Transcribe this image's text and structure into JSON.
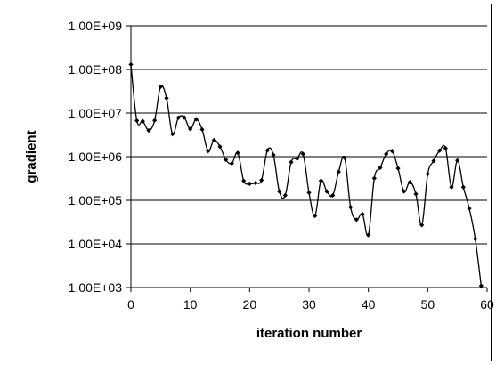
{
  "chart_data": {
    "type": "line",
    "title": "",
    "xlabel": "iteration number",
    "ylabel": "gradient",
    "y_scale": "log",
    "xlim": [
      0,
      60
    ],
    "ylim": [
      1000,
      1000000000
    ],
    "x_ticks": [
      "0",
      "10",
      "20",
      "30",
      "40",
      "50",
      "60"
    ],
    "y_ticks": [
      "1.00E+03",
      "1.00E+04",
      "1.00E+05",
      "1.00E+06",
      "1.00E+07",
      "1.00E+08",
      "1.00E+09"
    ],
    "grid": "horizontal major gridlines",
    "legend": "none",
    "marker": "diamond",
    "line_color": "#000000",
    "series": [
      {
        "x": [
          0,
          1,
          2,
          3,
          4,
          5,
          6,
          7,
          8,
          9,
          10,
          11,
          12,
          13,
          14,
          15,
          16,
          17,
          18,
          19,
          20,
          21,
          22,
          23,
          24,
          25,
          26,
          27,
          28,
          29,
          30,
          31,
          32,
          33,
          34,
          35,
          36,
          37,
          38,
          39,
          40,
          41,
          42,
          43,
          44,
          45,
          46,
          47,
          48,
          49,
          50,
          51,
          52,
          53,
          54,
          55,
          56,
          57,
          58,
          59
        ],
        "y": [
          130000000,
          6700000,
          6500000,
          4000000,
          6800000,
          40000000,
          22000000,
          3300000,
          7800000,
          7900000,
          4300000,
          7200000,
          4200000,
          1350000,
          2400000,
          1700000,
          850000,
          700000,
          1220000,
          280000,
          240000,
          250000,
          290000,
          1400000,
          1100000,
          160000,
          130000,
          750000,
          900000,
          1150000,
          150000,
          44000,
          280000,
          160000,
          130000,
          450000,
          940000,
          70000,
          36000,
          48000,
          16000,
          320000,
          560000,
          1150000,
          1350000,
          540000,
          160000,
          260000,
          140000,
          27000,
          400000,
          800000,
          1380000,
          1560000,
          200000,
          820000,
          200000,
          65000,
          13000,
          1100
        ]
      }
    ]
  }
}
